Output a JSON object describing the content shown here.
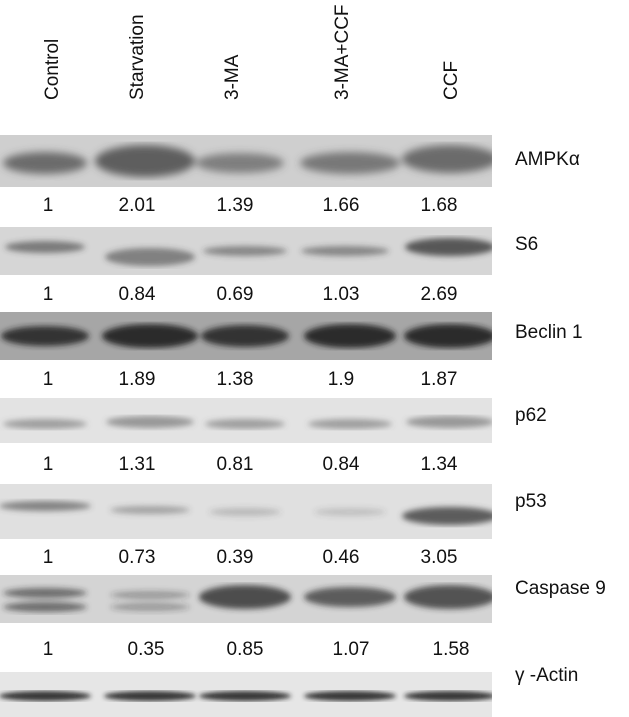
{
  "lanes": [
    "Control",
    "Starvation",
    "3-MA",
    "3-MA+CCF",
    "CCF"
  ],
  "blots": [
    {
      "protein": "AMPKα",
      "values": [
        "1",
        "2.01",
        "1.39",
        "1.66",
        "1.68"
      ]
    },
    {
      "protein": "S6",
      "values": [
        "1",
        "0.84",
        "0.69",
        "1.03",
        "2.69"
      ]
    },
    {
      "protein": "Beclin 1",
      "values": [
        "1",
        "1.89",
        "1.38",
        "1.9",
        "1.87"
      ]
    },
    {
      "protein": "p62",
      "values": [
        "1",
        "1.31",
        "0.81",
        "0.84",
        "1.34"
      ]
    },
    {
      "protein": "p53",
      "values": [
        "1",
        "0.73",
        "0.39",
        "0.46",
        "3.05"
      ]
    },
    {
      "protein": "Caspase 9",
      "values": [
        "1",
        "0.35",
        "0.85",
        "1.07",
        "1.58"
      ]
    },
    {
      "protein": "γ -Actin"
    }
  ]
}
